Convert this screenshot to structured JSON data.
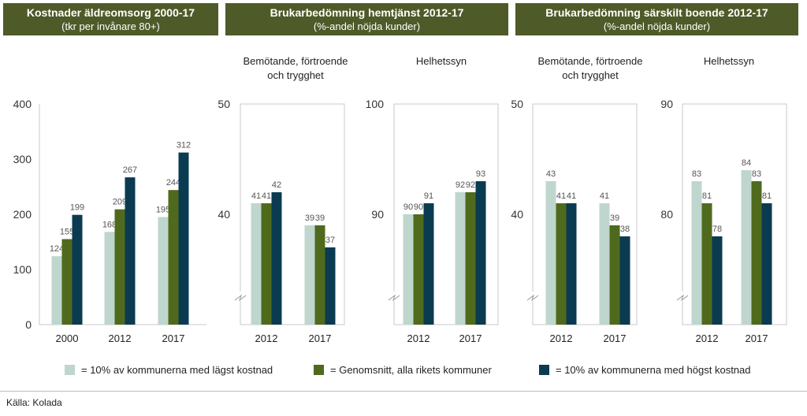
{
  "colors": {
    "low": "#bfd6ce",
    "avg": "#4f6a1d",
    "high": "#0b3b50",
    "header_bg": "#4e5a28"
  },
  "headers": [
    {
      "title": "Kostnader äldreomsorg 2000-17",
      "subtitle": "(tkr per invånare 80+)"
    },
    {
      "title": "Brukarbedömning hemtjänst 2012-17",
      "subtitle": "(%-andel nöjda kunder)"
    },
    {
      "title": "Brukarbedömning särskilt boende 2012-17",
      "subtitle": "(%-andel nöjda kunder)"
    }
  ],
  "legend": {
    "low": "= 10% av kommunerna med lägst kostnad",
    "avg": "= Genomsnitt, alla rikets kommuner",
    "high": "= 10% av kommunerna med högst kostnad"
  },
  "source": "Källa:  Kolada",
  "chart_data": [
    {
      "type": "bar",
      "title": "",
      "categories": [
        "2000",
        "2012",
        "2017"
      ],
      "series": [
        {
          "name": "low",
          "values": [
            124,
            168,
            195
          ]
        },
        {
          "name": "avg",
          "values": [
            155,
            209,
            244
          ]
        },
        {
          "name": "high",
          "values": [
            199,
            267,
            312
          ]
        }
      ],
      "ylim": [
        0,
        400
      ],
      "yticks": [
        0,
        100,
        200,
        300,
        400
      ],
      "axis_break": false
    },
    {
      "type": "bar",
      "title": "Bemötande, förtroende och trygghet",
      "categories": [
        "2012",
        "2017"
      ],
      "series": [
        {
          "name": "low",
          "values": [
            41,
            39
          ]
        },
        {
          "name": "avg",
          "values": [
            41,
            39
          ]
        },
        {
          "name": "high",
          "values": [
            42,
            37
          ]
        }
      ],
      "ylim": [
        30,
        50
      ],
      "yticks": [
        40,
        50
      ],
      "axis_break": true
    },
    {
      "type": "bar",
      "title": "Helhetssyn",
      "categories": [
        "2012",
        "2017"
      ],
      "series": [
        {
          "name": "low",
          "values": [
            90,
            92
          ]
        },
        {
          "name": "avg",
          "values": [
            90,
            92
          ]
        },
        {
          "name": "high",
          "values": [
            91,
            93
          ]
        }
      ],
      "ylim": [
        80,
        100
      ],
      "yticks": [
        90,
        100
      ],
      "axis_break": true
    },
    {
      "type": "bar",
      "title": "Bemötande, förtroende och trygghet",
      "categories": [
        "2012",
        "2017"
      ],
      "series": [
        {
          "name": "low",
          "values": [
            43,
            41
          ]
        },
        {
          "name": "avg",
          "values": [
            41,
            39
          ]
        },
        {
          "name": "high",
          "values": [
            41,
            38
          ]
        }
      ],
      "ylim": [
        30,
        50
      ],
      "yticks": [
        40,
        50
      ],
      "axis_break": true
    },
    {
      "type": "bar",
      "title": "Helhetssyn",
      "categories": [
        "2012",
        "2017"
      ],
      "series": [
        {
          "name": "low",
          "values": [
            83,
            84
          ]
        },
        {
          "name": "avg",
          "values": [
            81,
            83
          ]
        },
        {
          "name": "high",
          "values": [
            78,
            81
          ]
        }
      ],
      "ylim": [
        70,
        90
      ],
      "yticks": [
        80,
        90
      ],
      "axis_break": true
    }
  ]
}
